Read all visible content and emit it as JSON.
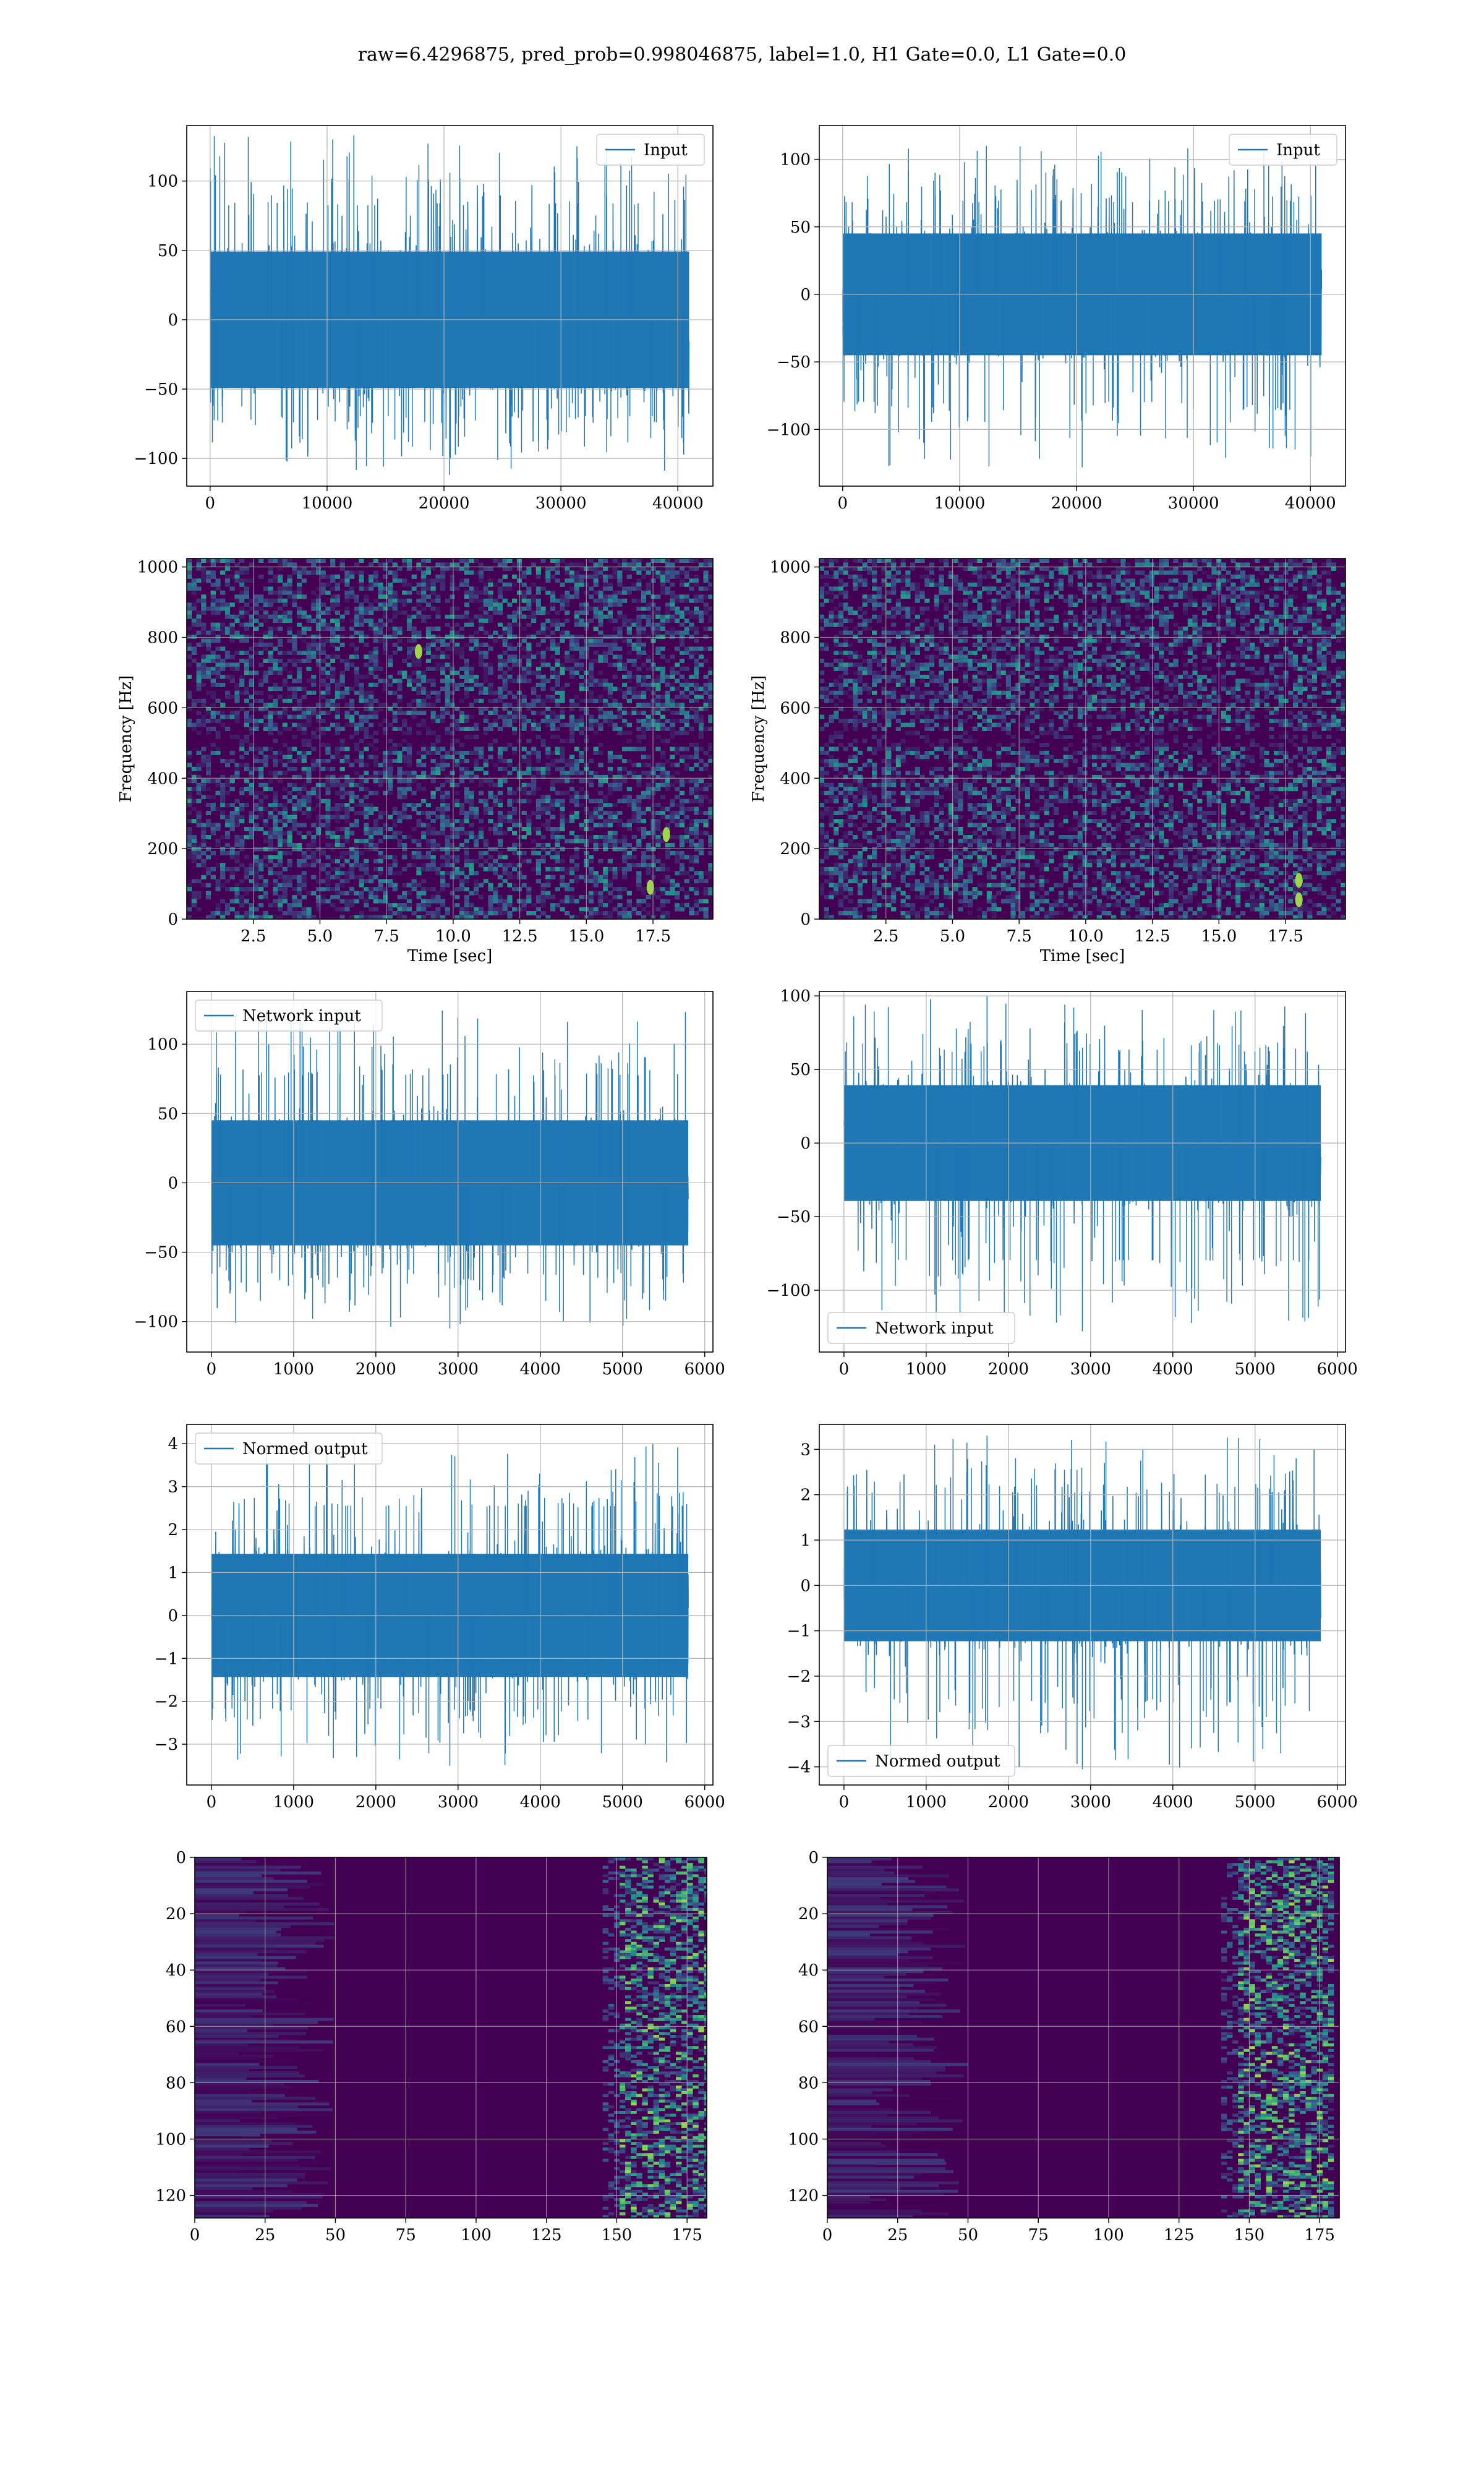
{
  "figure": {
    "suptitle": "raw=6.4296875, pred_prob=0.998046875, label=1.0, H1 Gate=0.0, L1 Gate=0.0"
  },
  "colors": {
    "line": "#1f77b4",
    "grid": "#b0b0b0",
    "viridis_low": "#440154",
    "viridis_mid": "#21918c",
    "viridis_high": "#fde725"
  },
  "chart_data": [
    {
      "type": "line",
      "panel": "input-left",
      "legend": "Input",
      "legend_loc": "upper right",
      "xlim": [
        -2000,
        43000
      ],
      "ylim": [
        -120,
        140
      ],
      "xticks": [
        0,
        10000,
        20000,
        30000,
        40000
      ],
      "yticks": [
        -100,
        -50,
        0,
        50,
        100
      ],
      "xlabel": "",
      "ylabel": "",
      "signal": {
        "x_range": [
          0,
          40960
        ],
        "mean": 0,
        "core_amplitude": 60,
        "peak_max": 133,
        "peak_min": -112
      },
      "grid": true
    },
    {
      "type": "line",
      "panel": "input-right",
      "legend": "Input",
      "legend_loc": "upper right",
      "xlim": [
        -2000,
        43000
      ],
      "ylim": [
        -142,
        125
      ],
      "xticks": [
        0,
        10000,
        20000,
        30000,
        40000
      ],
      "yticks": [
        -100,
        -50,
        0,
        50,
        100
      ],
      "xlabel": "",
      "ylabel": "",
      "signal": {
        "x_range": [
          0,
          40960
        ],
        "mean": 0,
        "core_amplitude": 55,
        "peak_max": 110,
        "peak_min": -128
      },
      "grid": true
    },
    {
      "type": "heatmap",
      "panel": "spectrogram-left",
      "xlim": [
        0,
        19.75
      ],
      "ylim": [
        0,
        1024
      ],
      "xticks": [
        2.5,
        5.0,
        7.5,
        10.0,
        12.5,
        15.0,
        17.5
      ],
      "yticks": [
        0,
        200,
        400,
        600,
        800,
        1000
      ],
      "xlabel": "Time [sec]",
      "ylabel": "Frequency [Hz]",
      "colormap": "viridis",
      "hot_spots": [
        {
          "t": 17.4,
          "f": 90
        },
        {
          "t": 18.0,
          "f": 240
        },
        {
          "t": 8.7,
          "f": 760
        }
      ],
      "grid": true
    },
    {
      "type": "heatmap",
      "panel": "spectrogram-right",
      "xlim": [
        0,
        19.75
      ],
      "ylim": [
        0,
        1024
      ],
      "xticks": [
        2.5,
        5.0,
        7.5,
        10.0,
        12.5,
        15.0,
        17.5
      ],
      "yticks": [
        0,
        200,
        400,
        600,
        800,
        1000
      ],
      "xlabel": "Time [sec]",
      "ylabel": "Frequency [Hz]",
      "colormap": "viridis",
      "hot_spots": [
        {
          "t": 18.0,
          "f": 55
        },
        {
          "t": 18.0,
          "f": 110
        }
      ],
      "grid": true
    },
    {
      "type": "line",
      "panel": "network-input-left",
      "legend": "Network input",
      "legend_loc": "upper left",
      "xlim": [
        -300,
        6100
      ],
      "ylim": [
        -122,
        138
      ],
      "xticks": [
        0,
        1000,
        2000,
        3000,
        4000,
        5000,
        6000
      ],
      "yticks": [
        -100,
        -50,
        0,
        50,
        100
      ],
      "xlabel": "",
      "ylabel": "",
      "signal": {
        "x_range": [
          0,
          5800
        ],
        "mean": 0,
        "core_amplitude": 55,
        "peak_max": 125,
        "peak_min": -105
      },
      "grid": true
    },
    {
      "type": "line",
      "panel": "network-input-right",
      "legend": "Network input",
      "legend_loc": "lower left",
      "xlim": [
        -300,
        6100
      ],
      "ylim": [
        -142,
        103
      ],
      "xticks": [
        0,
        1000,
        2000,
        3000,
        4000,
        5000,
        6000
      ],
      "yticks": [
        -100,
        -50,
        0,
        50,
        100
      ],
      "xlabel": "",
      "ylabel": "",
      "signal": {
        "x_range": [
          0,
          5800
        ],
        "mean": 0,
        "core_amplitude": 48,
        "peak_max": 100,
        "peak_min": -128
      },
      "grid": true
    },
    {
      "type": "line",
      "panel": "normed-output-left",
      "legend": "Normed output",
      "legend_loc": "upper left",
      "xlim": [
        -300,
        6100
      ],
      "ylim": [
        -3.95,
        4.45
      ],
      "xticks": [
        0,
        1000,
        2000,
        3000,
        4000,
        5000,
        6000
      ],
      "yticks": [
        -3,
        -2,
        -1,
        0,
        1,
        2,
        3,
        4
      ],
      "xlabel": "",
      "ylabel": "",
      "signal": {
        "x_range": [
          0,
          5800
        ],
        "mean": 0,
        "core_amplitude": 1.75,
        "peak_max": 4.1,
        "peak_min": -3.5
      },
      "grid": true
    },
    {
      "type": "line",
      "panel": "normed-output-right",
      "legend": "Normed output",
      "legend_loc": "lower left",
      "xlim": [
        -300,
        6100
      ],
      "ylim": [
        -4.4,
        3.55
      ],
      "xticks": [
        0,
        1000,
        2000,
        3000,
        4000,
        5000,
        6000
      ],
      "yticks": [
        -4,
        -3,
        -2,
        -1,
        0,
        1,
        2,
        3
      ],
      "xlabel": "",
      "ylabel": "",
      "signal": {
        "x_range": [
          0,
          5800
        ],
        "mean": 0,
        "core_amplitude": 1.5,
        "peak_max": 3.3,
        "peak_min": -4.05
      },
      "grid": true
    },
    {
      "type": "heatmap",
      "panel": "features-left",
      "xlim": [
        0,
        182
      ],
      "ylim": [
        128,
        0
      ],
      "xticks": [
        0,
        25,
        50,
        75,
        100,
        125,
        150,
        175
      ],
      "yticks": [
        0,
        20,
        40,
        60,
        80,
        100,
        120
      ],
      "xlabel": "",
      "ylabel": "",
      "colormap": "viridis",
      "active_band": [
        150,
        182
      ],
      "grid": true
    },
    {
      "type": "heatmap",
      "panel": "features-right",
      "xlim": [
        0,
        182
      ],
      "ylim": [
        128,
        0
      ],
      "xticks": [
        0,
        25,
        50,
        75,
        100,
        125,
        150,
        175
      ],
      "yticks": [
        0,
        20,
        40,
        60,
        80,
        100,
        120
      ],
      "xlabel": "",
      "ylabel": "",
      "colormap": "viridis",
      "active_band": [
        145,
        180
      ],
      "grid": true
    }
  ]
}
